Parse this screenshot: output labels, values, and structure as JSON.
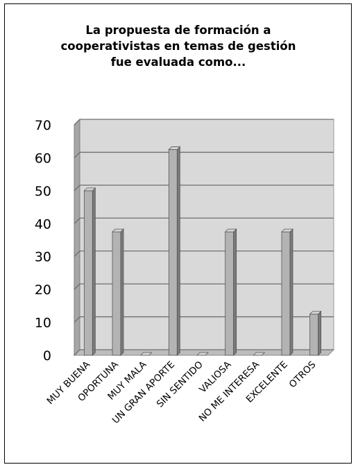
{
  "chart_data": {
    "type": "bar",
    "title": "La propuesta de formación a cooperativistas en temas de gestión fue evaluada como...",
    "categories": [
      "MUY BUENA",
      "OPORTUNA",
      "MUY MALA",
      "UN GRAN APORTE",
      "SIN SENTIDO",
      "VALIOSA",
      "NO ME INTERESA",
      "EXCELENTE",
      "OTROS"
    ],
    "values": [
      50,
      37.5,
      0,
      62.5,
      0,
      37.5,
      0,
      37.5,
      12.5
    ],
    "yticks": [
      0,
      10,
      20,
      30,
      40,
      50,
      60,
      70
    ],
    "ylim": [
      0,
      70
    ],
    "grid": true,
    "three_d": true,
    "colors": {
      "bar_front": "#b3b3b3",
      "bar_side": "#7a7a7a",
      "bar_top": "#d4d4d4",
      "wall": "#d9d9d9",
      "grid": "#6e6e6e"
    }
  }
}
